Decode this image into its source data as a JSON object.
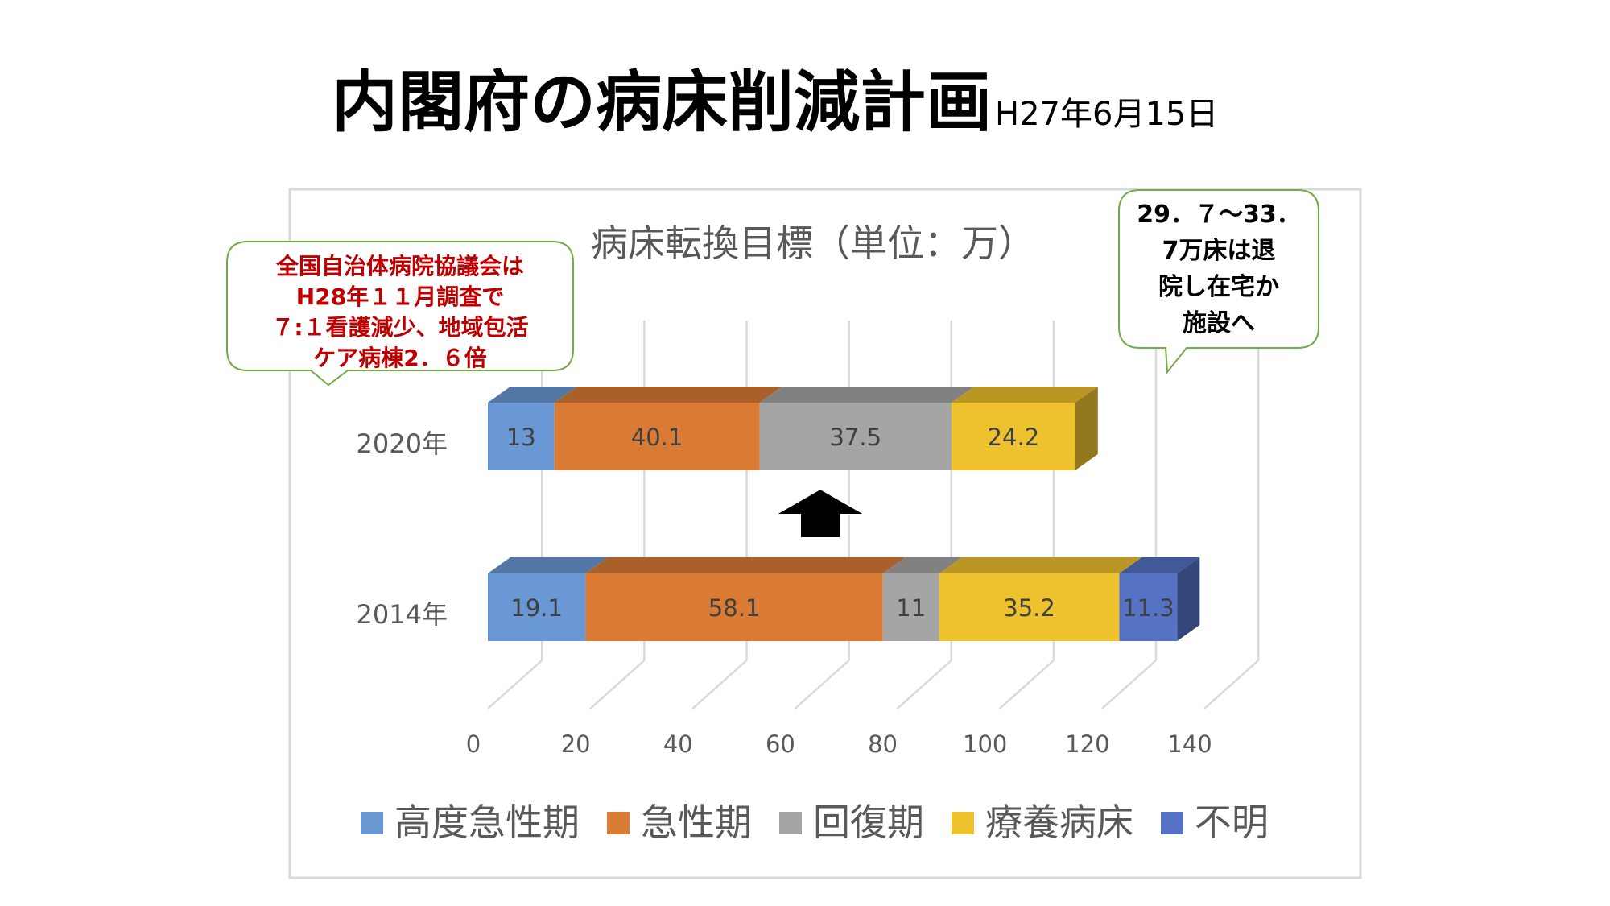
{
  "slide": {
    "title": "内閣府の病床削減計画",
    "date": "H27年6月15日"
  },
  "callouts": {
    "left": {
      "lines": [
        "全国自治体病院協議会は",
        "H28年１１月調査で",
        "７:１看護減少、地域包活",
        "ケア病棟2．６倍"
      ],
      "color": "#c00000"
    },
    "right": {
      "lines": [
        "29．７～33．",
        "7万床は退",
        "院し在宅か",
        "施設へ"
      ],
      "color": "#000000"
    }
  },
  "chart_data": {
    "type": "bar",
    "orientation": "horizontal",
    "stacked": true,
    "three_d": true,
    "title": "病床転換目標（単位：万）",
    "categories": [
      "2020年",
      "2014年"
    ],
    "series": [
      {
        "name": "高度急性期",
        "color": "#6a98d4",
        "values": [
          13,
          19.1
        ]
      },
      {
        "name": "急性期",
        "color": "#d97b35",
        "values": [
          40.1,
          58.1
        ]
      },
      {
        "name": "回復期",
        "color": "#a5a5a5",
        "values": [
          37.5,
          11
        ]
      },
      {
        "name": "療養病床",
        "color": "#eec12e",
        "values": [
          24.2,
          35.2
        ]
      },
      {
        "name": "不明",
        "color": "#5572c4",
        "values": [
          null,
          11.3
        ]
      }
    ],
    "xlim": [
      0,
      140
    ],
    "xticks": [
      0,
      20,
      40,
      60,
      80,
      100,
      120,
      140
    ],
    "grid": true,
    "legend": "bottom",
    "annotation": "up-arrow"
  }
}
